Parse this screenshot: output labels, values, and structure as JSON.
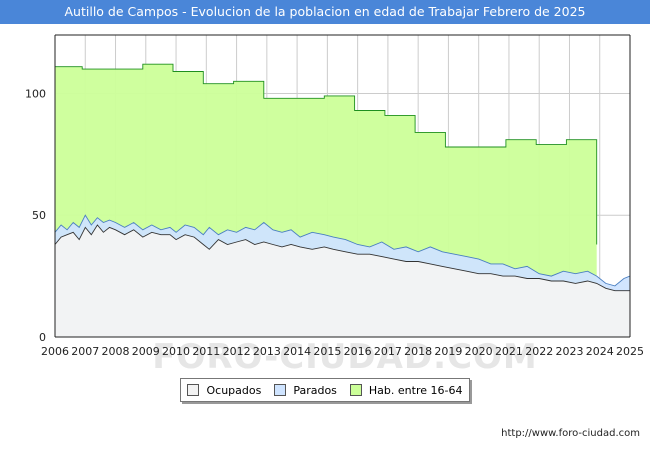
{
  "chart_data": {
    "type": "area",
    "title": "Autillo de Campos - Evolucion de la poblacion en edad de Trabajar Febrero de 2025",
    "x_labels": [
      "2006",
      "2007",
      "2008",
      "2009",
      "2010",
      "2011",
      "2012",
      "2013",
      "2014",
      "2015",
      "2016",
      "2017",
      "2018",
      "2019",
      "2020",
      "2021",
      "2022",
      "2023",
      "2024",
      "2025"
    ],
    "y_ticks": [
      0,
      50,
      100
    ],
    "ylim": [
      0,
      124
    ],
    "xlim": [
      2006.0,
      2025.0
    ],
    "grid": true,
    "legend_position": "bottom",
    "series": [
      {
        "name": "Hab. entre 16-64",
        "color": "#ccff99",
        "line_color": "#1f8f1f",
        "points": [
          [
            2006.0,
            111
          ],
          [
            2006.9,
            111
          ],
          [
            2006.9,
            110
          ],
          [
            2008.9,
            110
          ],
          [
            2008.9,
            112
          ],
          [
            2009.9,
            112
          ],
          [
            2009.9,
            109
          ],
          [
            2010.9,
            109
          ],
          [
            2010.9,
            104
          ],
          [
            2011.9,
            104
          ],
          [
            2011.9,
            105
          ],
          [
            2012.9,
            105
          ],
          [
            2012.9,
            98
          ],
          [
            2014.9,
            98
          ],
          [
            2014.9,
            99
          ],
          [
            2015.9,
            99
          ],
          [
            2015.9,
            93
          ],
          [
            2016.9,
            93
          ],
          [
            2016.9,
            91
          ],
          [
            2017.9,
            91
          ],
          [
            2017.9,
            84
          ],
          [
            2018.9,
            84
          ],
          [
            2018.9,
            78
          ],
          [
            2020.9,
            78
          ],
          [
            2020.9,
            81
          ],
          [
            2021.9,
            81
          ],
          [
            2021.9,
            79
          ],
          [
            2022.9,
            79
          ],
          [
            2022.9,
            81
          ],
          [
            2023.9,
            81
          ],
          [
            2023.9,
            38
          ]
        ]
      },
      {
        "name": "Parados",
        "color": "#cfe4ff",
        "line_color": "#4a7fc1",
        "points": [
          [
            2006.0,
            43
          ],
          [
            2006.2,
            46
          ],
          [
            2006.4,
            44
          ],
          [
            2006.6,
            47
          ],
          [
            2006.8,
            45
          ],
          [
            2007.0,
            50
          ],
          [
            2007.2,
            46
          ],
          [
            2007.4,
            49
          ],
          [
            2007.6,
            47
          ],
          [
            2007.8,
            48
          ],
          [
            2008.0,
            47
          ],
          [
            2008.3,
            45
          ],
          [
            2008.6,
            47
          ],
          [
            2008.9,
            44
          ],
          [
            2009.2,
            46
          ],
          [
            2009.5,
            44
          ],
          [
            2009.8,
            45
          ],
          [
            2010.0,
            43
          ],
          [
            2010.3,
            46
          ],
          [
            2010.6,
            45
          ],
          [
            2010.9,
            42
          ],
          [
            2011.1,
            45
          ],
          [
            2011.4,
            42
          ],
          [
            2011.7,
            44
          ],
          [
            2012.0,
            43
          ],
          [
            2012.3,
            45
          ],
          [
            2012.6,
            44
          ],
          [
            2012.9,
            47
          ],
          [
            2013.2,
            44
          ],
          [
            2013.5,
            43
          ],
          [
            2013.8,
            44
          ],
          [
            2014.1,
            41
          ],
          [
            2014.5,
            43
          ],
          [
            2014.9,
            42
          ],
          [
            2015.2,
            41
          ],
          [
            2015.6,
            40
          ],
          [
            2016.0,
            38
          ],
          [
            2016.4,
            37
          ],
          [
            2016.8,
            39
          ],
          [
            2017.2,
            36
          ],
          [
            2017.6,
            37
          ],
          [
            2018.0,
            35
          ],
          [
            2018.4,
            37
          ],
          [
            2018.8,
            35
          ],
          [
            2019.2,
            34
          ],
          [
            2019.6,
            33
          ],
          [
            2020.0,
            32
          ],
          [
            2020.4,
            30
          ],
          [
            2020.8,
            30
          ],
          [
            2021.2,
            28
          ],
          [
            2021.6,
            29
          ],
          [
            2022.0,
            26
          ],
          [
            2022.4,
            25
          ],
          [
            2022.8,
            27
          ],
          [
            2023.2,
            26
          ],
          [
            2023.6,
            27
          ],
          [
            2023.9,
            25
          ],
          [
            2024.2,
            22
          ],
          [
            2024.5,
            21
          ],
          [
            2024.8,
            24
          ],
          [
            2025.0,
            25
          ]
        ]
      },
      {
        "name": "Ocupados",
        "color": "#f3f3f3",
        "line_color": "#333333",
        "points": [
          [
            2006.0,
            38
          ],
          [
            2006.2,
            41
          ],
          [
            2006.4,
            42
          ],
          [
            2006.6,
            43
          ],
          [
            2006.8,
            40
          ],
          [
            2007.0,
            45
          ],
          [
            2007.2,
            42
          ],
          [
            2007.4,
            46
          ],
          [
            2007.6,
            43
          ],
          [
            2007.8,
            45
          ],
          [
            2008.0,
            44
          ],
          [
            2008.3,
            42
          ],
          [
            2008.6,
            44
          ],
          [
            2008.9,
            41
          ],
          [
            2009.2,
            43
          ],
          [
            2009.5,
            42
          ],
          [
            2009.8,
            42
          ],
          [
            2010.0,
            40
          ],
          [
            2010.3,
            42
          ],
          [
            2010.6,
            41
          ],
          [
            2010.9,
            38
          ],
          [
            2011.1,
            36
          ],
          [
            2011.4,
            40
          ],
          [
            2011.7,
            38
          ],
          [
            2012.0,
            39
          ],
          [
            2012.3,
            40
          ],
          [
            2012.6,
            38
          ],
          [
            2012.9,
            39
          ],
          [
            2013.2,
            38
          ],
          [
            2013.5,
            37
          ],
          [
            2013.8,
            38
          ],
          [
            2014.1,
            37
          ],
          [
            2014.5,
            36
          ],
          [
            2014.9,
            37
          ],
          [
            2015.2,
            36
          ],
          [
            2015.6,
            35
          ],
          [
            2016.0,
            34
          ],
          [
            2016.4,
            34
          ],
          [
            2016.8,
            33
          ],
          [
            2017.2,
            32
          ],
          [
            2017.6,
            31
          ],
          [
            2018.0,
            31
          ],
          [
            2018.4,
            30
          ],
          [
            2018.8,
            29
          ],
          [
            2019.2,
            28
          ],
          [
            2019.6,
            27
          ],
          [
            2020.0,
            26
          ],
          [
            2020.4,
            26
          ],
          [
            2020.8,
            25
          ],
          [
            2021.2,
            25
          ],
          [
            2021.6,
            24
          ],
          [
            2022.0,
            24
          ],
          [
            2022.4,
            23
          ],
          [
            2022.8,
            23
          ],
          [
            2023.2,
            22
          ],
          [
            2023.6,
            23
          ],
          [
            2023.9,
            22
          ],
          [
            2024.2,
            20
          ],
          [
            2024.5,
            19
          ],
          [
            2024.8,
            19
          ],
          [
            2025.0,
            19
          ]
        ]
      }
    ]
  },
  "legend": {
    "items": [
      "Ocupados",
      "Parados",
      "Hab. entre 16-64"
    ]
  },
  "footer": {
    "url": "http://www.foro-ciudad.com"
  },
  "watermark": {
    "text": "FORO-CIUDAD.COM"
  }
}
